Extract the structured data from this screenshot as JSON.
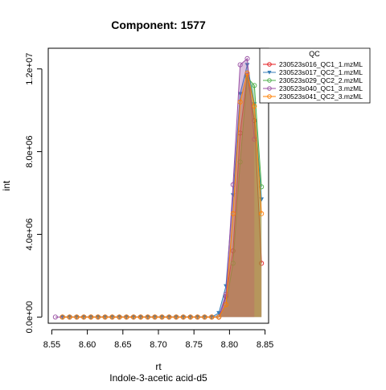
{
  "chart_data": {
    "type": "area",
    "title": "Component: 1577",
    "xlabel": "rt",
    "ylabel": "int",
    "subtitle": "Indole-3-acetic acid-d5",
    "xlim": [
      8.545,
      8.855
    ],
    "ylim": [
      -300000,
      13000000
    ],
    "x_ticks": [
      8.55,
      8.6,
      8.65,
      8.7,
      8.75,
      8.8,
      8.85
    ],
    "x_tick_labels": [
      "8.55",
      "8.60",
      "8.65",
      "8.70",
      "8.75",
      "8.80",
      "8.85"
    ],
    "y_ticks": [
      0,
      4000000,
      8000000,
      12000000
    ],
    "y_tick_labels": [
      "0.0e+00",
      "4.0e+06",
      "8.0e+06",
      "1.2e+07"
    ],
    "legend": {
      "title": "QC",
      "position": "top-right"
    },
    "series": [
      {
        "name": "230523s016_QC1_1.mzML",
        "color": "#E41A1C",
        "marker": "circle",
        "x": [
          8.565,
          8.575,
          8.585,
          8.595,
          8.605,
          8.615,
          8.625,
          8.635,
          8.645,
          8.655,
          8.665,
          8.675,
          8.685,
          8.695,
          8.705,
          8.715,
          8.725,
          8.735,
          8.745,
          8.755,
          8.765,
          8.775,
          8.785,
          8.795,
          8.805,
          8.815,
          8.825,
          8.835,
          8.845
        ],
        "values": [
          0,
          0,
          0,
          0,
          0,
          0,
          0,
          0,
          0,
          0,
          0,
          0,
          0,
          0,
          0,
          0,
          0,
          0,
          0,
          0,
          0,
          0,
          0,
          1000000,
          3200000,
          8900000,
          11700000,
          9500000,
          2600000
        ]
      },
      {
        "name": "230523s017_QC2_1.mzML",
        "color": "#377EB8",
        "marker": "triangle",
        "x": [
          8.565,
          8.575,
          8.585,
          8.595,
          8.605,
          8.615,
          8.625,
          8.635,
          8.645,
          8.655,
          8.665,
          8.675,
          8.685,
          8.695,
          8.705,
          8.715,
          8.725,
          8.735,
          8.745,
          8.755,
          8.765,
          8.775,
          8.785,
          8.795,
          8.805,
          8.815,
          8.825,
          8.835,
          8.845
        ],
        "values": [
          0,
          0,
          0,
          0,
          0,
          0,
          0,
          0,
          0,
          0,
          0,
          0,
          0,
          0,
          0,
          0,
          0,
          0,
          0,
          0,
          0,
          0,
          200000,
          1500000,
          5900000,
          10800000,
          12200000,
          10300000,
          5700000
        ]
      },
      {
        "name": "230523s029_QC2_2.mzML",
        "color": "#4DAF4A",
        "marker": "circle",
        "x": [
          8.565,
          8.575,
          8.585,
          8.595,
          8.605,
          8.615,
          8.625,
          8.635,
          8.645,
          8.655,
          8.665,
          8.675,
          8.685,
          8.695,
          8.705,
          8.715,
          8.725,
          8.735,
          8.745,
          8.755,
          8.765,
          8.775,
          8.785,
          8.795,
          8.805,
          8.815,
          8.825,
          8.835,
          8.845
        ],
        "values": [
          0,
          0,
          0,
          0,
          0,
          0,
          0,
          0,
          0,
          0,
          0,
          0,
          0,
          0,
          0,
          0,
          0,
          0,
          0,
          0,
          0,
          0,
          0,
          600000,
          2600000,
          7500000,
          11600000,
          11200000,
          6300000
        ]
      },
      {
        "name": "230523s040_QC1_3.mzML",
        "color": "#984EA3",
        "marker": "circle",
        "x": [
          8.555,
          8.565,
          8.575,
          8.585,
          8.595,
          8.605,
          8.615,
          8.625,
          8.635,
          8.645,
          8.655,
          8.665,
          8.675,
          8.685,
          8.695,
          8.705,
          8.715,
          8.725,
          8.735,
          8.745,
          8.755,
          8.765,
          8.775,
          8.785,
          8.795,
          8.805,
          8.815,
          8.825,
          8.835
        ],
        "values": [
          0,
          0,
          0,
          0,
          0,
          0,
          0,
          0,
          0,
          0,
          0,
          0,
          0,
          0,
          0,
          0,
          0,
          0,
          0,
          0,
          0,
          0,
          0,
          0,
          1100000,
          6400000,
          12200000,
          12500000,
          8600000
        ]
      },
      {
        "name": "230523s041_QC2_3.mzML",
        "color": "#FF7F00",
        "marker": "circle",
        "x": [
          8.565,
          8.575,
          8.585,
          8.595,
          8.605,
          8.615,
          8.625,
          8.635,
          8.645,
          8.655,
          8.665,
          8.675,
          8.685,
          8.695,
          8.705,
          8.715,
          8.725,
          8.735,
          8.745,
          8.755,
          8.765,
          8.775,
          8.785,
          8.795,
          8.805,
          8.815,
          8.825,
          8.835,
          8.845
        ],
        "values": [
          0,
          0,
          0,
          0,
          0,
          0,
          0,
          0,
          0,
          0,
          0,
          0,
          0,
          0,
          0,
          0,
          0,
          0,
          0,
          0,
          0,
          0,
          0,
          600000,
          5000000,
          10400000,
          11800000,
          10200000,
          5000000
        ]
      }
    ]
  }
}
